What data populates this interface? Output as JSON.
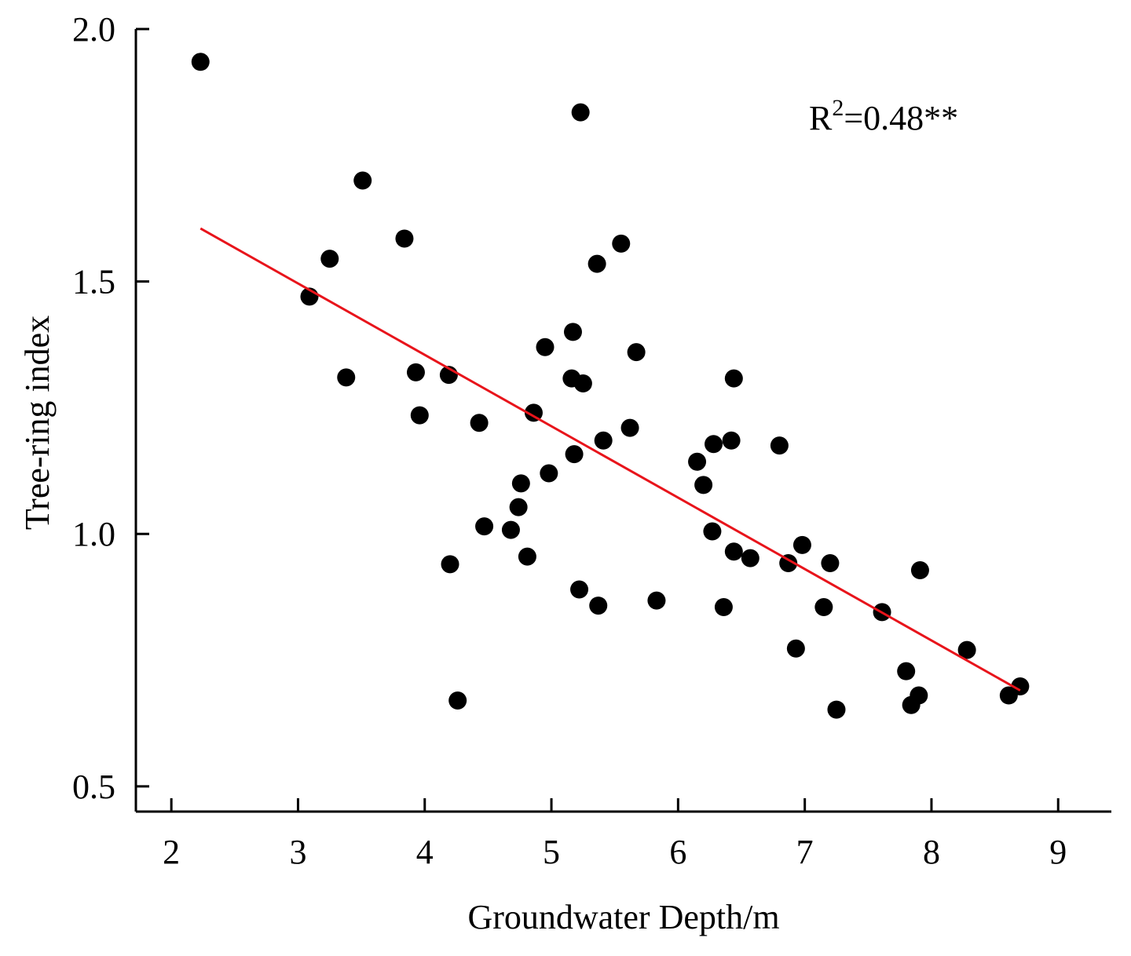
{
  "chart_data": {
    "type": "scatter",
    "xlabel": "Groundwater Depth/m",
    "ylabel": "Tree-ring index",
    "xlim": [
      1.72,
      9.42
    ],
    "ylim": [
      0.45,
      2.0
    ],
    "xticks": [
      2,
      3,
      4,
      5,
      6,
      7,
      8,
      9
    ],
    "xtick_labels": [
      "2",
      "3",
      "4",
      "5",
      "6",
      "7",
      "8",
      "9"
    ],
    "yticks": [
      0.5,
      1.0,
      1.5,
      2.0
    ],
    "ytick_labels": [
      "0.5",
      "1.0",
      "1.5",
      "2.0"
    ],
    "grid": false,
    "annotation": {
      "base": "R",
      "sup": "2",
      "rest": "=0.48**"
    },
    "colors": {
      "points": "#000000",
      "trendline": "#e8141b",
      "axes": "#000000"
    },
    "trendline": {
      "x": [
        2.23,
        8.7
      ],
      "y": [
        1.605,
        0.69
      ]
    },
    "points": [
      [
        2.23,
        1.935
      ],
      [
        3.09,
        1.47
      ],
      [
        3.25,
        1.545
      ],
      [
        3.38,
        1.31
      ],
      [
        3.51,
        1.7
      ],
      [
        3.84,
        1.585
      ],
      [
        3.93,
        1.32
      ],
      [
        3.96,
        1.235
      ],
      [
        4.19,
        1.315
      ],
      [
        4.2,
        0.94
      ],
      [
        4.26,
        0.67
      ],
      [
        4.43,
        1.22
      ],
      [
        4.47,
        1.015
      ],
      [
        4.68,
        1.008
      ],
      [
        4.74,
        1.053
      ],
      [
        4.76,
        1.1
      ],
      [
        4.81,
        0.955
      ],
      [
        4.86,
        1.24
      ],
      [
        4.95,
        1.37
      ],
      [
        4.98,
        1.12
      ],
      [
        5.16,
        1.308
      ],
      [
        5.17,
        1.4
      ],
      [
        5.18,
        1.158
      ],
      [
        5.22,
        0.89
      ],
      [
        5.23,
        1.835
      ],
      [
        5.25,
        1.298
      ],
      [
        5.36,
        1.535
      ],
      [
        5.37,
        0.858
      ],
      [
        5.41,
        1.185
      ],
      [
        5.55,
        1.575
      ],
      [
        5.62,
        1.21
      ],
      [
        5.67,
        1.36
      ],
      [
        5.83,
        0.868
      ],
      [
        6.15,
        1.143
      ],
      [
        6.2,
        1.097
      ],
      [
        6.27,
        1.005
      ],
      [
        6.28,
        1.178
      ],
      [
        6.36,
        0.855
      ],
      [
        6.42,
        1.185
      ],
      [
        6.44,
        0.965
      ],
      [
        6.44,
        1.308
      ],
      [
        6.57,
        0.952
      ],
      [
        6.8,
        1.175
      ],
      [
        6.87,
        0.942
      ],
      [
        6.93,
        0.773
      ],
      [
        6.98,
        0.978
      ],
      [
        7.15,
        0.855
      ],
      [
        7.2,
        0.942
      ],
      [
        7.25,
        0.652
      ],
      [
        7.61,
        0.845
      ],
      [
        7.8,
        0.728
      ],
      [
        7.84,
        0.661
      ],
      [
        7.9,
        0.68
      ],
      [
        7.91,
        0.928
      ],
      [
        8.28,
        0.77
      ],
      [
        8.61,
        0.68
      ],
      [
        8.7,
        0.698
      ]
    ]
  }
}
